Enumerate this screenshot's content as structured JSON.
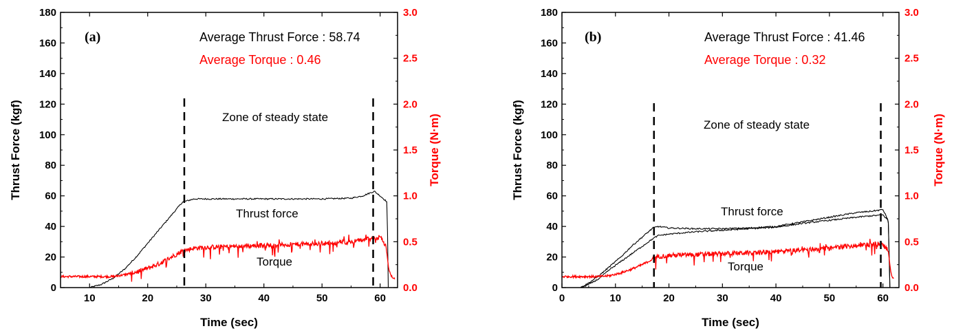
{
  "chart_data": [
    {
      "type": "line",
      "panel_label": "(a)",
      "xlabel": "Time (sec)",
      "ylabel_left": "Thrust Force (kgf)",
      "ylabel_right": "Torque (N·m)",
      "xlim": [
        5,
        63
      ],
      "x_ticks": [
        10,
        20,
        30,
        40,
        50,
        60
      ],
      "ylim_left": [
        0,
        180
      ],
      "y_ticks_left": [
        0,
        20,
        40,
        60,
        80,
        100,
        120,
        140,
        160,
        180
      ],
      "ylim_right": [
        0,
        3.0
      ],
      "y_ticks_right": [
        "0.0",
        "0.5",
        "1.0",
        "1.5",
        "2.0",
        "2.5",
        "3.0"
      ],
      "avg_thrust_text": "Average Thrust Force : 58.74",
      "avg_torque_text": "Average Torque :  0.46",
      "zone_text": "Zone of steady state",
      "thrust_label": "Thrust force",
      "torque_label": "Torque",
      "steady_zone_x": [
        26.3,
        58.8
      ],
      "series": [
        {
          "name": "Thrust force",
          "axis": "left",
          "color": "#000000",
          "x": [
            10,
            12,
            14,
            16,
            18,
            20,
            22,
            24,
            26,
            28,
            30,
            35,
            40,
            45,
            50,
            55,
            57,
            59,
            60,
            61.2,
            61.4
          ],
          "values": [
            0,
            2,
            6,
            12,
            20,
            29,
            38,
            47,
            56,
            58,
            58,
            58,
            58,
            58,
            58,
            58.5,
            60,
            63,
            60,
            56,
            0
          ]
        },
        {
          "name": "Torque",
          "axis": "right",
          "color": "#ff0000",
          "x": [
            5,
            10,
            12,
            14,
            16,
            18,
            20,
            22,
            24,
            26,
            28,
            30,
            35,
            40,
            45,
            50,
            55,
            58,
            60,
            61,
            61.5,
            62,
            62.5
          ],
          "values": [
            0.12,
            0.12,
            0.12,
            0.12,
            0.14,
            0.17,
            0.21,
            0.26,
            0.33,
            0.4,
            0.43,
            0.44,
            0.45,
            0.46,
            0.47,
            0.48,
            0.5,
            0.53,
            0.55,
            0.45,
            0.2,
            0.12,
            0.1
          ]
        }
      ]
    },
    {
      "type": "line",
      "panel_label": "(b)",
      "xlabel": "Time (sec)",
      "ylabel_left": "Thrust Force (kgf)",
      "ylabel_right": "Torque (N·m)",
      "xlim": [
        0,
        63
      ],
      "x_ticks": [
        0,
        10,
        20,
        30,
        40,
        50,
        60
      ],
      "ylim_left": [
        0,
        180
      ],
      "y_ticks_left": [
        0,
        20,
        40,
        60,
        80,
        100,
        120,
        140,
        160,
        180
      ],
      "ylim_right": [
        0,
        3.0
      ],
      "y_ticks_right": [
        "0.0",
        "0.5",
        "1.0",
        "1.5",
        "2.0",
        "2.5",
        "3.0"
      ],
      "avg_thrust_text": "Average Thrust Force : 41.46",
      "avg_torque_text": "Average Torque :  0.32",
      "zone_text": "Zone of steady state",
      "thrust_label": "Thrust force",
      "torque_label": "Torque",
      "steady_zone_x": [
        17.2,
        59.6
      ],
      "series": [
        {
          "name": "Thrust force",
          "axis": "left",
          "color": "#000000",
          "x": [
            3.5,
            5,
            7,
            9,
            11,
            13,
            15,
            17,
            18,
            20,
            25,
            30,
            35,
            40,
            45,
            50,
            55,
            58,
            60,
            61,
            61.3
          ],
          "values": [
            0,
            3,
            8,
            14,
            20,
            27,
            33,
            39,
            40,
            39,
            38.5,
            38.5,
            39,
            40,
            43,
            46,
            49,
            50,
            51,
            44,
            0
          ]
        },
        {
          "name": "Thrust force",
          "axis": "left",
          "color": "#000000",
          "x": [
            3.5,
            5,
            7,
            9,
            11,
            13,
            15,
            17,
            18,
            20,
            25,
            30,
            35,
            40,
            45,
            50,
            55,
            58,
            60,
            61,
            61.3
          ],
          "values": [
            0,
            2,
            6,
            12,
            17,
            22,
            27,
            32,
            34,
            35,
            36.5,
            37.5,
            38.5,
            39.5,
            42,
            44,
            46,
            47,
            47.5,
            44,
            0
          ]
        },
        {
          "name": "Torque",
          "axis": "right",
          "color": "#ff0000",
          "x": [
            0,
            5,
            7,
            9,
            11,
            13,
            15,
            17,
            18,
            20,
            25,
            30,
            35,
            40,
            45,
            50,
            55,
            58,
            60,
            61,
            61.5,
            62
          ],
          "values": [
            0.12,
            0.12,
            0.12,
            0.13,
            0.16,
            0.2,
            0.25,
            0.31,
            0.34,
            0.35,
            0.36,
            0.37,
            0.38,
            0.39,
            0.41,
            0.43,
            0.46,
            0.47,
            0.48,
            0.4,
            0.15,
            0.1
          ]
        }
      ]
    }
  ]
}
